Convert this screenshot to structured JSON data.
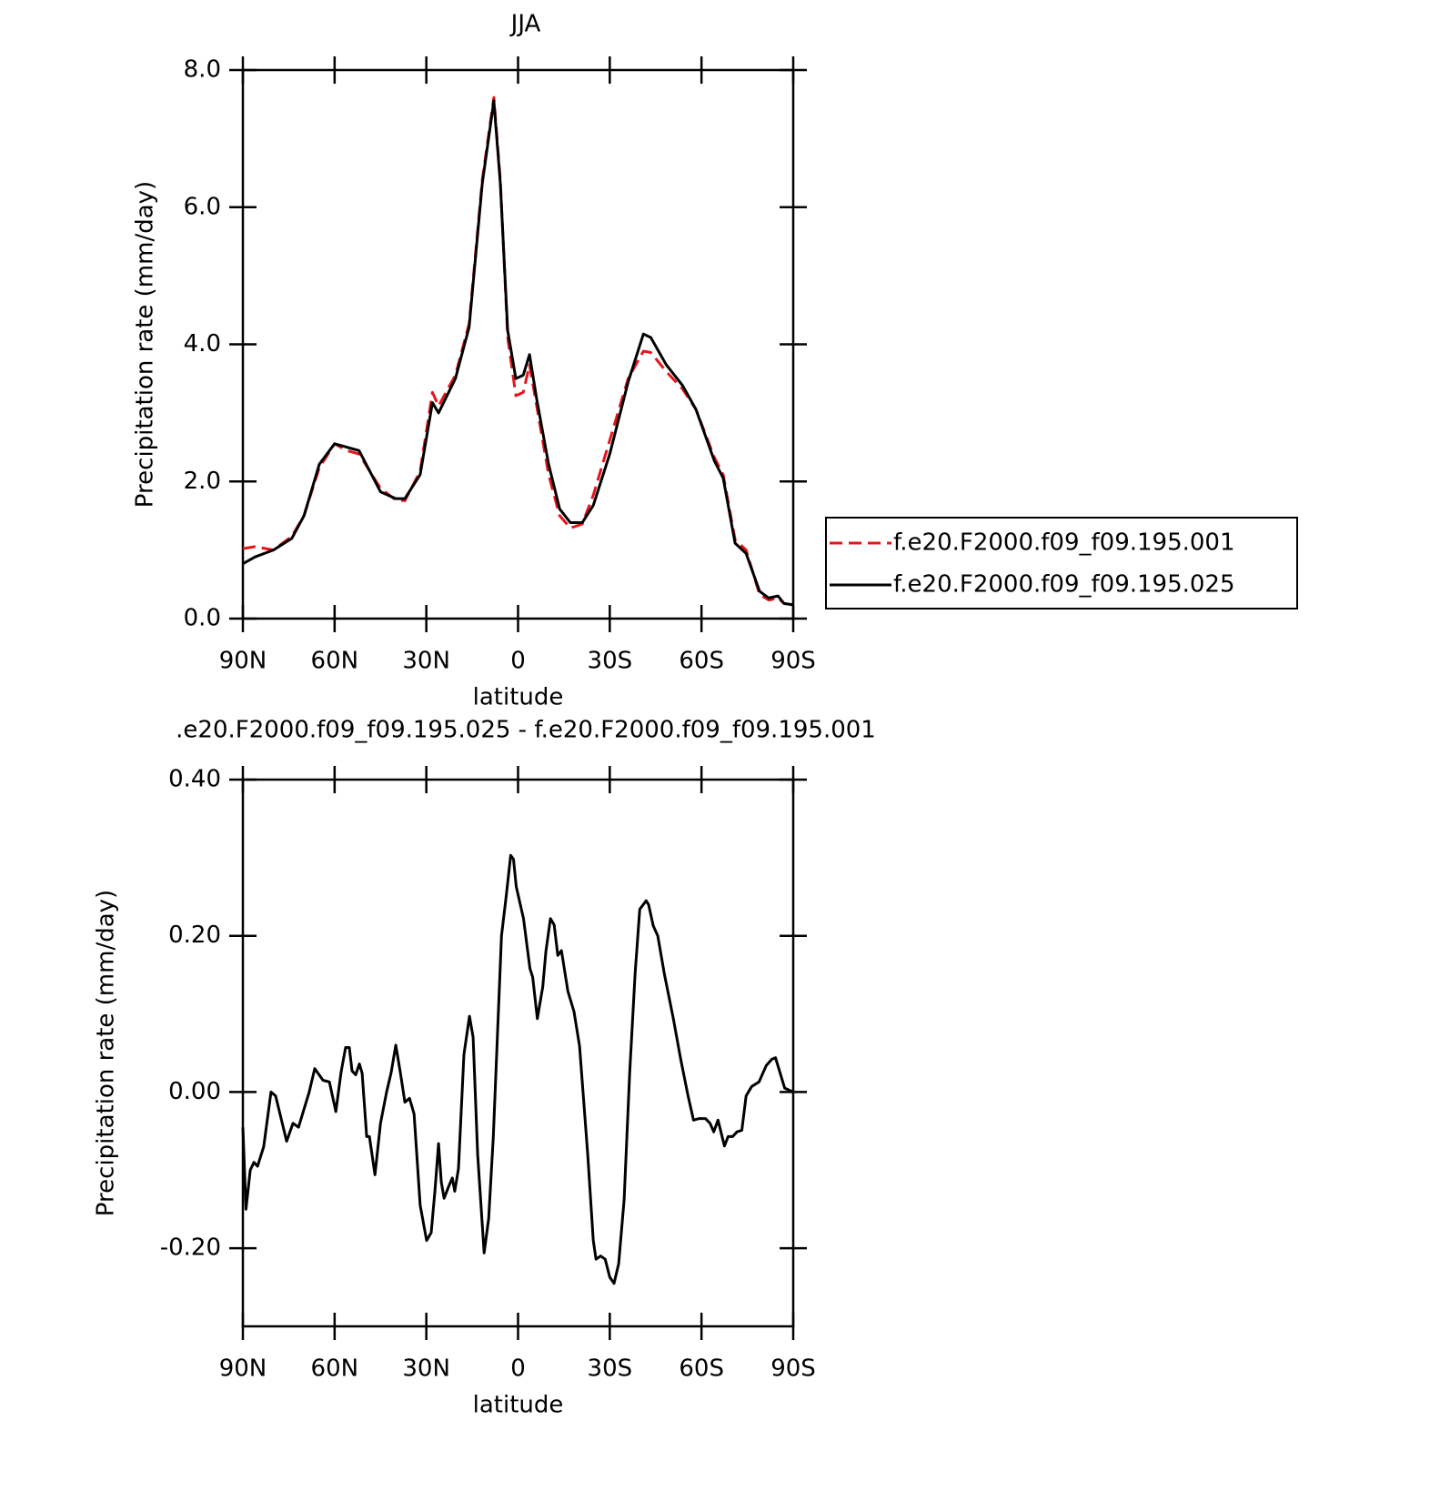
{
  "chart_data": [
    {
      "type": "line",
      "title": "JJA",
      "xlabel": "latitude",
      "ylabel": "Precipitation rate (mm/day)",
      "x": [
        90,
        86,
        80,
        74,
        70,
        65,
        60,
        56,
        52,
        45,
        40,
        37,
        32,
        28,
        26,
        20.5,
        16,
        11.7,
        7.9,
        5.8,
        3.4,
        0.7,
        -1.7,
        -3.75,
        -6.1,
        -10,
        -13.6,
        -17.1,
        -21,
        -24.6,
        -30,
        -36,
        -41,
        -43.4,
        -48.5,
        -53.8,
        -58.2,
        -64.2,
        -67.1,
        -71,
        -74.6,
        -79,
        -82,
        -85,
        -87,
        -90
      ],
      "series": [
        {
          "name": "f.e20.F2000.f09_f09.195.001",
          "color": "#e8141b",
          "dashed": true,
          "values": [
            1.02,
            1.05,
            1.0,
            1.2,
            1.5,
            2.2,
            2.55,
            2.45,
            2.4,
            1.9,
            1.73,
            1.72,
            2.15,
            3.3,
            3.1,
            3.55,
            4.3,
            6.4,
            7.6,
            6.4,
            4.1,
            3.25,
            3.3,
            3.7,
            3.1,
            2.1,
            1.5,
            1.32,
            1.38,
            1.8,
            2.6,
            3.5,
            3.9,
            3.88,
            3.6,
            3.35,
            3.05,
            2.35,
            2.1,
            1.15,
            1.0,
            0.35,
            0.27,
            0.3,
            0.22,
            0.2
          ]
        },
        {
          "name": "f.e20.F2000.f09_f09.195.025",
          "color": "#000000",
          "dashed": false,
          "values": [
            0.8,
            0.9,
            1.0,
            1.17,
            1.5,
            2.25,
            2.55,
            2.5,
            2.45,
            1.85,
            1.75,
            1.75,
            2.1,
            3.15,
            3.0,
            3.5,
            4.25,
            6.35,
            7.55,
            6.35,
            4.2,
            3.5,
            3.55,
            3.85,
            3.2,
            2.25,
            1.6,
            1.4,
            1.4,
            1.65,
            2.4,
            3.45,
            4.15,
            4.1,
            3.7,
            3.4,
            3.05,
            2.3,
            2.05,
            1.1,
            0.95,
            0.4,
            0.3,
            0.33,
            0.22,
            0.2
          ]
        }
      ],
      "xlim": [
        90,
        -90
      ],
      "xticks": [
        {
          "value": 90,
          "label": "90N"
        },
        {
          "value": 60,
          "label": "60N"
        },
        {
          "value": 30,
          "label": "30N"
        },
        0,
        {
          "value": -30,
          "label": "30S"
        },
        {
          "value": -60,
          "label": "60S"
        },
        {
          "value": -90,
          "label": "90S"
        }
      ],
      "ylim": [
        0,
        8
      ],
      "yticks": [
        {
          "value": 0,
          "label": "0.0"
        },
        {
          "value": 2,
          "label": "2.0"
        },
        {
          "value": 4,
          "label": "4.0"
        },
        {
          "value": 6,
          "label": "6.0"
        },
        {
          "value": 8,
          "label": "8.0"
        }
      ],
      "legend": "right"
    },
    {
      "type": "line",
      "title": ".e20.F2000.f09_f09.195.025 - f.e20.F2000.f09_f09.195.001",
      "xlabel": "latitude",
      "ylabel": "Precipitation rate (mm/day)",
      "x": [
        90,
        89,
        87.6,
        86.4,
        85.2,
        83.2,
        80.8,
        79.3,
        75.7,
        73.6,
        71.8,
        68.3,
        66.5,
        63.8,
        61.7,
        59.6,
        57.9,
        56.4,
        55.2,
        54.3,
        53.1,
        51.9,
        51,
        49.5,
        48.6,
        46.8,
        45,
        43,
        41.5,
        40,
        38.5,
        37,
        35.5,
        34,
        32,
        29.9,
        28.4,
        27.2,
        26,
        25.1,
        24.2,
        22.7,
        21.5,
        20.7,
        19.5,
        17.7,
        15.9,
        14.7,
        13.2,
        11.1,
        9.6,
        8.1,
        5.4,
        3.9,
        2.4,
        1.5,
        0.6,
        -1.8,
        -3.9,
        -4.8,
        -6.3,
        -8.1,
        -9.1,
        -10.6,
        -11.8,
        -13,
        -14.2,
        -16.3,
        -18.3,
        -20.1,
        -22.8,
        -24.6,
        -25.5,
        -27,
        -28.5,
        -30,
        -31.4,
        -32.9,
        -34.7,
        -36.5,
        -38.3,
        -39.8,
        -41.9,
        -42.7,
        -44.2,
        -45.7,
        -47.8,
        -50.8,
        -53.2,
        -55.6,
        -57.4,
        -59.2,
        -61.3,
        -62.8,
        -64,
        -65.4,
        -67.5,
        -68.7,
        -70.2,
        -71.6,
        -73.2,
        -74.6,
        -76.4,
        -78.8,
        -81.2,
        -83,
        -84.2,
        -87.2,
        -90
      ],
      "values": [
        -0.045,
        -0.15,
        -0.1,
        -0.09,
        -0.095,
        -0.07,
        0.0,
        -0.005,
        -0.063,
        -0.04,
        -0.045,
        0.0,
        0.03,
        0.015,
        0.013,
        -0.025,
        0.025,
        0.057,
        0.057,
        0.027,
        0.022,
        0.036,
        0.024,
        -0.057,
        -0.057,
        -0.106,
        -0.04,
        0.0,
        0.025,
        0.06,
        0.025,
        -0.013,
        -0.008,
        -0.028,
        -0.145,
        -0.19,
        -0.18,
        -0.127,
        -0.066,
        -0.115,
        -0.136,
        -0.121,
        -0.11,
        -0.127,
        -0.098,
        0.048,
        0.097,
        0.07,
        -0.08,
        -0.206,
        -0.162,
        -0.057,
        0.2,
        0.25,
        0.303,
        0.298,
        0.263,
        0.222,
        0.158,
        0.147,
        0.094,
        0.135,
        0.18,
        0.222,
        0.214,
        0.175,
        0.181,
        0.129,
        0.103,
        0.059,
        -0.08,
        -0.19,
        -0.214,
        -0.21,
        -0.214,
        -0.237,
        -0.245,
        -0.22,
        -0.138,
        0.024,
        0.152,
        0.234,
        0.245,
        0.24,
        0.213,
        0.2,
        0.152,
        0.094,
        0.042,
        -0.005,
        -0.036,
        -0.034,
        -0.034,
        -0.04,
        -0.051,
        -0.036,
        -0.069,
        -0.057,
        -0.057,
        -0.051,
        -0.049,
        -0.005,
        0.007,
        0.013,
        0.034,
        0.042,
        0.044,
        0.005,
        0.0
      ],
      "color": "#000000",
      "xlim": [
        90,
        -90
      ],
      "xticks": [
        {
          "value": 90,
          "label": "90N"
        },
        {
          "value": 60,
          "label": "60N"
        },
        {
          "value": 30,
          "label": "30N"
        },
        0,
        {
          "value": -30,
          "label": "30S"
        },
        {
          "value": -60,
          "label": "60S"
        },
        {
          "value": -90,
          "label": "90S"
        }
      ],
      "ylim": [
        -0.3,
        0.4
      ],
      "yticks": [
        {
          "value": -0.2,
          "label": "-0.20"
        },
        {
          "value": 0,
          "label": "0.00"
        },
        {
          "value": 0.2,
          "label": "0.20"
        },
        {
          "value": 0.4,
          "label": "0.40"
        }
      ]
    }
  ]
}
